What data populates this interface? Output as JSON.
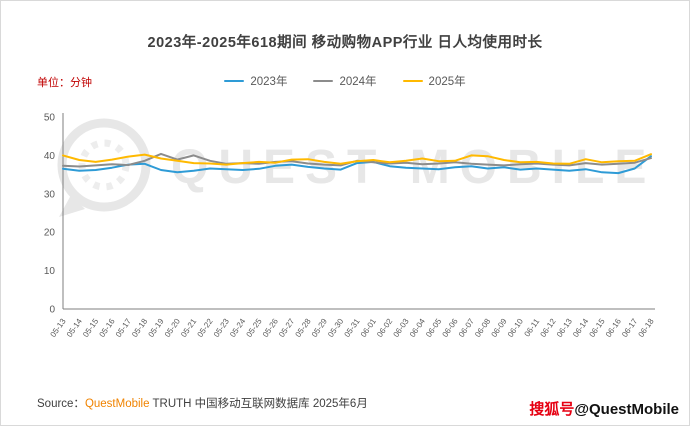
{
  "title": "2023年-2025年618期间 移动购物APP行业 日人均使用时长",
  "unit_label": "单位：分钟",
  "watermark_text": "QUEST MOBILE",
  "source": {
    "prefix": "Source：",
    "brand": "QuestMobile",
    "rest": " TRUTH 中国移动互联网数据库 2025年6月"
  },
  "footer_badge": {
    "red": "搜狐号",
    "handle": "@QuestMobile"
  },
  "chart_data": {
    "type": "line",
    "title": "2023年-2025年618期间 移动购物APP行业 日人均使用时长",
    "ylabel": "分钟",
    "ylim": [
      0,
      50
    ],
    "yticks": [
      0,
      10,
      20,
      30,
      40,
      50
    ],
    "grid": false,
    "legend_position": "top",
    "categories": [
      "05-13",
      "05-14",
      "05-15",
      "05-16",
      "05-17",
      "05-18",
      "05-19",
      "05-20",
      "05-21",
      "05-22",
      "05-23",
      "05-24",
      "05-25",
      "05-26",
      "05-27",
      "05-28",
      "05-29",
      "05-30",
      "05-31",
      "06-01",
      "06-02",
      "06-03",
      "06-04",
      "06-05",
      "06-06",
      "06-07",
      "06-08",
      "06-09",
      "06-10",
      "06-11",
      "06-12",
      "06-13",
      "06-14",
      "06-15",
      "06-16",
      "06-17",
      "06-18"
    ],
    "series": [
      {
        "name": "2023年",
        "color": "#2E9BD6",
        "values": [
          36.5,
          36.0,
          36.2,
          36.8,
          37.6,
          37.8,
          36.2,
          35.6,
          36.0,
          36.6,
          36.4,
          36.2,
          36.5,
          37.3,
          37.6,
          37.0,
          36.6,
          36.3,
          38.0,
          38.3,
          37.2,
          36.8,
          36.6,
          36.4,
          36.9,
          37.2,
          36.6,
          36.9,
          36.3,
          36.6,
          36.3,
          36.0,
          36.4,
          35.6,
          35.4,
          36.6,
          39.8
        ]
      },
      {
        "name": "2024年",
        "color": "#8C8C8C",
        "values": [
          37.3,
          37.1,
          37.4,
          37.7,
          37.5,
          38.6,
          40.4,
          38.9,
          40.0,
          38.6,
          37.8,
          38.0,
          37.8,
          38.3,
          38.5,
          37.9,
          37.6,
          37.4,
          38.6,
          38.2,
          37.9,
          38.1,
          37.7,
          37.9,
          38.2,
          37.8,
          37.6,
          37.4,
          37.7,
          37.9,
          37.6,
          37.4,
          38.0,
          37.6,
          37.8,
          38.1,
          39.3
        ]
      },
      {
        "name": "2025年",
        "color": "#FFB900",
        "values": [
          40.0,
          38.8,
          38.3,
          38.9,
          39.7,
          40.2,
          39.2,
          38.6,
          38.0,
          37.9,
          37.6,
          38.0,
          38.3,
          38.1,
          38.9,
          39.0,
          38.3,
          37.8,
          38.5,
          38.8,
          38.2,
          38.6,
          39.2,
          38.5,
          38.6,
          40.0,
          39.8,
          38.8,
          38.2,
          38.3,
          37.9,
          37.8,
          39.0,
          38.2,
          38.5,
          38.6,
          40.3
        ]
      }
    ]
  }
}
